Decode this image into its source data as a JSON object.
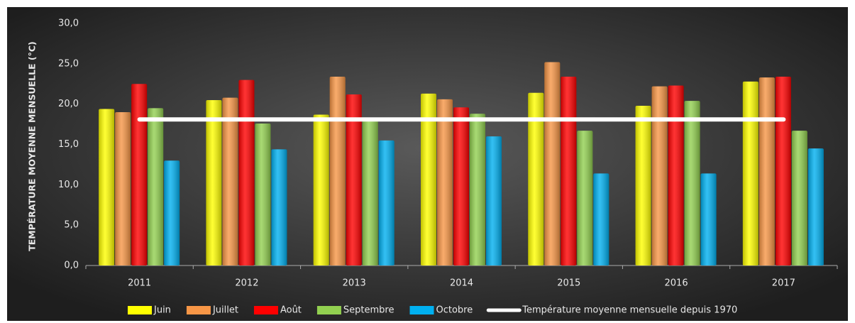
{
  "chart_data": {
    "type": "bar",
    "ylabel": "TEMPÉRATURE MOYENNE MENSUELLE (°C)",
    "categories": [
      "2011",
      "2012",
      "2013",
      "2014",
      "2015",
      "2016",
      "2017"
    ],
    "series": [
      {
        "name": "Juin",
        "color": "#ffff00",
        "values": [
          19.4,
          20.5,
          18.7,
          21.3,
          21.4,
          19.8,
          22.8
        ]
      },
      {
        "name": "Juillet",
        "color": "#f79646",
        "values": [
          19.0,
          20.8,
          23.4,
          20.6,
          25.2,
          22.2,
          23.3
        ]
      },
      {
        "name": "Août",
        "color": "#ff0000",
        "values": [
          22.5,
          23.0,
          21.2,
          19.6,
          23.4,
          22.3,
          23.4
        ]
      },
      {
        "name": "Septembre",
        "color": "#92d050",
        "values": [
          19.5,
          17.6,
          18.0,
          18.8,
          16.7,
          20.4,
          16.7
        ]
      },
      {
        "name": "Octobre",
        "color": "#00b0f0",
        "values": [
          13.0,
          14.4,
          15.5,
          16.0,
          11.4,
          11.4,
          14.5
        ]
      },
      {
        "name": "Température moyenne mensuelle depuis 1970",
        "color": "#ffffff",
        "type": "line",
        "values": [
          18.1,
          18.1,
          18.1,
          18.1,
          18.1,
          18.1,
          18.1
        ]
      }
    ],
    "ylim": [
      0,
      30
    ],
    "yticks": [
      {
        "value": 0,
        "label": "0,0"
      },
      {
        "value": 5,
        "label": "5,0"
      },
      {
        "value": 10,
        "label": "10,0"
      },
      {
        "value": 15,
        "label": "15,0"
      },
      {
        "value": 20,
        "label": "20,0"
      },
      {
        "value": 25,
        "label": "25,0"
      },
      {
        "value": 30,
        "label": "30,0"
      }
    ],
    "grid": false,
    "legend": "bottom"
  }
}
